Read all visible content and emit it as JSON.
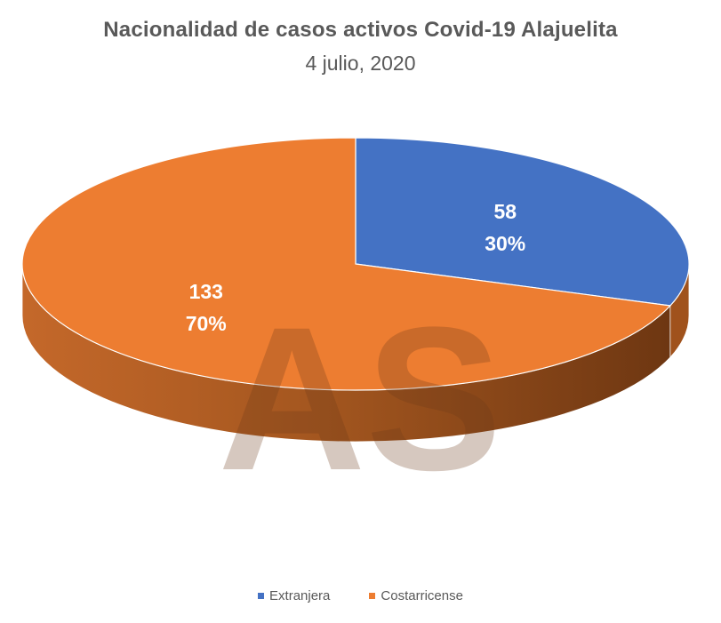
{
  "chart_data": {
    "type": "pie",
    "title": "Nacionalidad de casos activos Covid-19 Alajuelita",
    "subtitle": "4 julio, 2020",
    "categories": [
      "Extranjera",
      "Costarricense"
    ],
    "values": [
      58,
      133
    ],
    "percent_labels": [
      "30%",
      "70%"
    ],
    "colors": [
      "#4472C4",
      "#ED7D31"
    ],
    "side_colors": [
      "#2F5597",
      "#A0521C"
    ],
    "legend_position": "bottom",
    "style": "3d",
    "watermark": "AS"
  }
}
